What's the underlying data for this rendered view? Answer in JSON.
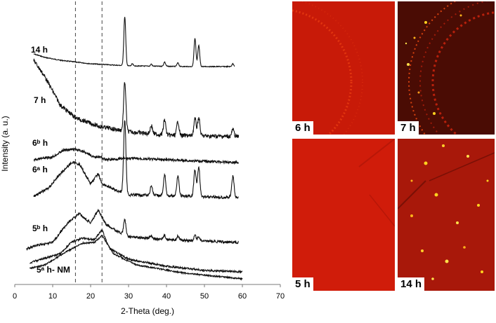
{
  "chart_data": {
    "type": "line",
    "xlabel": "2-Theta (deg.)",
    "ylabel": "Intensity (a. u.)",
    "xlim": [
      0,
      70
    ],
    "x_ticks": [
      "0",
      "10",
      "20",
      "30",
      "40",
      "50",
      "60",
      "70"
    ],
    "reference_lines_x": [
      16,
      23
    ],
    "curves": [
      {
        "label": "14 h",
        "offset": 94,
        "background": [
          [
            5,
            77
          ],
          [
            8,
            82
          ],
          [
            12,
            86
          ],
          [
            20,
            91
          ],
          [
            30,
            94
          ],
          [
            45,
            95
          ],
          [
            58,
            95
          ]
        ],
        "peaks": [
          {
            "x": 29,
            "h": 70,
            "w": 0.25
          },
          {
            "x": 31,
            "h": 3,
            "w": 0.2
          },
          {
            "x": 36,
            "h": 3,
            "w": 0.2
          },
          {
            "x": 39.5,
            "h": 6,
            "w": 0.25
          },
          {
            "x": 43,
            "h": 5,
            "w": 0.25
          },
          {
            "x": 47.5,
            "h": 40,
            "w": 0.25
          },
          {
            "x": 48.5,
            "h": 30,
            "w": 0.25
          },
          {
            "x": 57.5,
            "h": 4,
            "w": 0.25
          }
        ],
        "noise": 0.6
      },
      {
        "label": "7 h",
        "offset": 190,
        "background": [
          [
            5,
            86
          ],
          [
            8,
            110
          ],
          [
            12,
            150
          ],
          [
            16,
            168
          ],
          [
            22,
            180
          ],
          [
            30,
            188
          ],
          [
            40,
            193
          ],
          [
            59,
            195
          ]
        ],
        "peaks": [
          {
            "x": 29,
            "h": 70,
            "w": 0.3
          },
          {
            "x": 36,
            "h": 12,
            "w": 0.3
          },
          {
            "x": 39.5,
            "h": 22,
            "w": 0.3
          },
          {
            "x": 43,
            "h": 20,
            "w": 0.3
          },
          {
            "x": 47.5,
            "h": 24,
            "w": 0.3
          },
          {
            "x": 48.5,
            "h": 26,
            "w": 0.3
          },
          {
            "x": 57.5,
            "h": 10,
            "w": 0.3
          }
        ],
        "noise": 3
      },
      {
        "label": "6ᵇ h",
        "offset": 220,
        "background": [
          [
            5,
            228
          ],
          [
            10,
            224
          ],
          [
            13,
            214
          ],
          [
            16,
            213
          ],
          [
            19,
            218
          ],
          [
            21,
            225
          ],
          [
            22,
            223
          ],
          [
            24,
            228
          ],
          [
            30,
            226
          ],
          [
            59,
            232
          ]
        ],
        "peaks": [],
        "noise": 1.8
      },
      {
        "label": "6ᵃ h",
        "offset": 282,
        "background": [
          [
            5,
            280
          ],
          [
            9,
            268
          ],
          [
            12,
            248
          ],
          [
            15,
            232
          ],
          [
            17,
            234
          ],
          [
            20,
            262
          ],
          [
            22,
            248
          ],
          [
            23,
            262
          ],
          [
            26,
            270
          ],
          [
            30,
            278
          ],
          [
            59,
            282
          ]
        ],
        "peaks": [
          {
            "x": 29,
            "h": 105,
            "w": 0.3
          },
          {
            "x": 36,
            "h": 14,
            "w": 0.3
          },
          {
            "x": 39.5,
            "h": 30,
            "w": 0.3
          },
          {
            "x": 43,
            "h": 28,
            "w": 0.3
          },
          {
            "x": 47.5,
            "h": 38,
            "w": 0.3
          },
          {
            "x": 48.5,
            "h": 42,
            "w": 0.3
          },
          {
            "x": 57.5,
            "h": 30,
            "w": 0.3
          }
        ],
        "noise": 2
      },
      {
        "label": "5ᵇ h",
        "offset": 340,
        "background": [
          [
            3,
            355
          ],
          [
            6,
            350
          ],
          [
            10,
            346
          ],
          [
            14,
            318
          ],
          [
            17,
            305
          ],
          [
            20,
            318
          ],
          [
            22,
            300
          ],
          [
            24,
            320
          ],
          [
            27,
            330
          ],
          [
            30,
            338
          ],
          [
            40,
            342
          ],
          [
            59,
            346
          ]
        ],
        "peaks": [
          {
            "x": 29,
            "h": 22,
            "w": 0.3
          },
          {
            "x": 36,
            "h": 4,
            "w": 0.3
          },
          {
            "x": 39.5,
            "h": 6,
            "w": 0.3
          },
          {
            "x": 43,
            "h": 6,
            "w": 0.3
          },
          {
            "x": 47.5,
            "h": 7,
            "w": 0.3
          },
          {
            "x": 48.5,
            "h": 6,
            "w": 0.3
          }
        ],
        "noise": 1.8
      },
      {
        "label": "5ᵃ h- NM",
        "offset": 380,
        "background": [
          [
            4,
            375
          ],
          [
            7,
            370
          ],
          [
            12,
            362
          ],
          [
            15,
            345
          ],
          [
            18,
            340
          ],
          [
            21,
            342
          ],
          [
            23,
            328
          ],
          [
            25,
            355
          ],
          [
            30,
            370
          ],
          [
            40,
            380
          ],
          [
            50,
            386
          ],
          [
            60,
            388
          ]
        ],
        "peaks": [],
        "noise": 1.4
      },
      {
        "label": "",
        "offset": 390,
        "background": [
          [
            4,
            383
          ],
          [
            8,
            378
          ],
          [
            14,
            358
          ],
          [
            18,
            347
          ],
          [
            21,
            346
          ],
          [
            23,
            336
          ],
          [
            26,
            362
          ],
          [
            32,
            378
          ],
          [
            45,
            390
          ],
          [
            60,
            398
          ]
        ],
        "peaks": [],
        "noise": 1.0
      }
    ]
  },
  "images": [
    {
      "label": "6 h"
    },
    {
      "label": "7 h"
    },
    {
      "label": "5 h"
    },
    {
      "label": "14 h"
    }
  ]
}
